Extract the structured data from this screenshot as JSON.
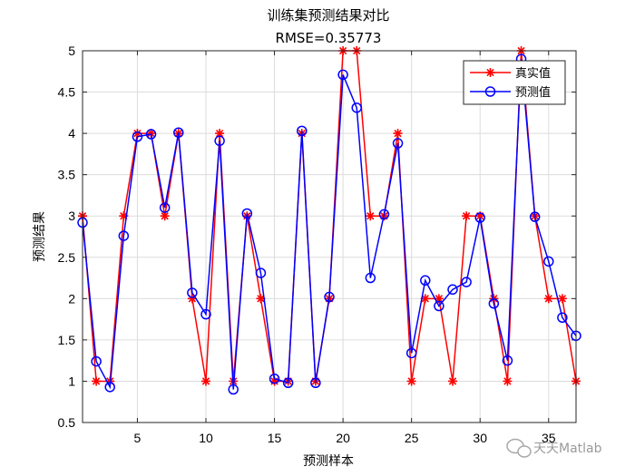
{
  "chart_data": {
    "type": "line",
    "title": "训练集预测结果对比",
    "subtitle": "RMSE=0.35773",
    "xlabel": "预测样本",
    "ylabel": "预测结果",
    "xlim": [
      1,
      37
    ],
    "ylim": [
      0.5,
      5
    ],
    "xticks": [
      5,
      10,
      15,
      20,
      25,
      30,
      35
    ],
    "yticks": [
      0.5,
      1,
      1.5,
      2,
      2.5,
      3,
      3.5,
      4,
      4.5,
      5
    ],
    "grid": true,
    "legend_position": "top-right",
    "x": [
      1,
      2,
      3,
      4,
      5,
      6,
      7,
      8,
      9,
      10,
      11,
      12,
      13,
      14,
      15,
      16,
      17,
      18,
      19,
      20,
      21,
      22,
      23,
      24,
      25,
      26,
      27,
      28,
      29,
      30,
      31,
      32,
      33,
      34,
      35,
      36,
      37
    ],
    "series": [
      {
        "name": "真实值",
        "color": "#ff0000",
        "marker": "asterisk",
        "values": [
          3,
          1,
          1,
          3,
          4,
          4,
          3,
          4,
          2,
          1,
          4,
          1,
          3,
          2,
          1,
          1,
          4,
          1,
          2,
          5,
          5,
          3,
          3,
          4,
          1,
          2,
          2,
          1,
          3,
          3,
          2,
          1,
          5,
          3,
          2,
          2,
          1
        ]
      },
      {
        "name": "预测值",
        "color": "#0000ff",
        "marker": "circle",
        "values": [
          2.92,
          1.24,
          0.93,
          2.76,
          3.96,
          3.99,
          3.1,
          4.01,
          2.07,
          1.81,
          3.91,
          0.9,
          3.03,
          2.31,
          1.03,
          0.98,
          4.03,
          0.98,
          2.02,
          4.71,
          4.31,
          2.25,
          3.02,
          3.88,
          1.34,
          2.22,
          1.91,
          2.11,
          2.2,
          2.98,
          1.94,
          1.25,
          4.9,
          2.99,
          2.45,
          1.77,
          1.55
        ]
      }
    ]
  },
  "watermark": {
    "icon": "wechat-icon",
    "text": "天天Matlab"
  }
}
